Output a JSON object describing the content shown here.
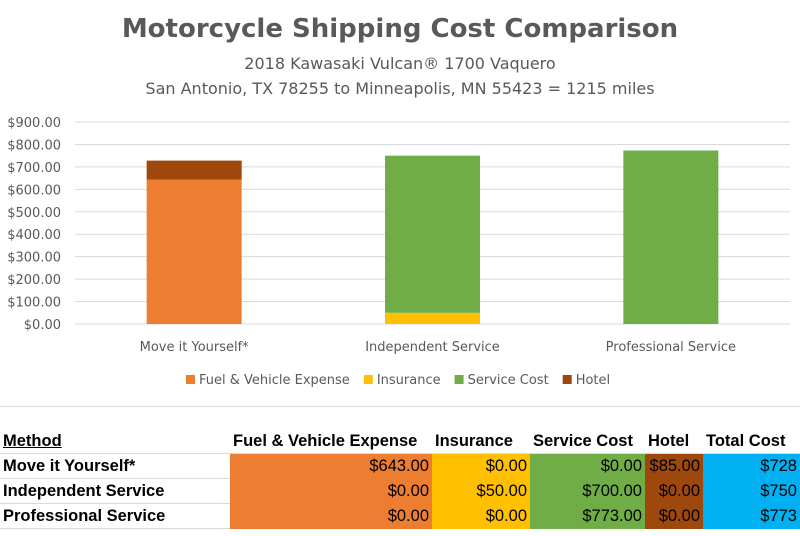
{
  "chart_data": {
    "type": "bar",
    "stacked": true,
    "title": "Motorcycle Shipping Cost Comparison",
    "subtitle_1": "2018 Kawasaki Vulcan® 1700 Vaquero",
    "subtitle_2": "San Antonio, TX 78255 to Minneapolis, MN 55423 = 1215 miles",
    "categories": [
      "Move it Yourself*",
      "Independent Service",
      "Professional Service"
    ],
    "series": [
      {
        "name": "Fuel & Vehicle Expense",
        "values": [
          643,
          0,
          0
        ],
        "color": "#ED7D31"
      },
      {
        "name": "Insurance",
        "values": [
          0,
          50,
          0
        ],
        "color": "#FFC000"
      },
      {
        "name": "Service Cost",
        "values": [
          0,
          700,
          773
        ],
        "color": "#70AD47"
      },
      {
        "name": "Hotel",
        "values": [
          85,
          0,
          0
        ],
        "color": "#9E480E"
      }
    ],
    "yticks": [
      "$0.00",
      "$100.00",
      "$200.00",
      "$300.00",
      "$400.00",
      "$500.00",
      "$600.00",
      "$700.00",
      "$800.00",
      "$900.00"
    ],
    "ylim": [
      0,
      900
    ],
    "grid": true,
    "legend": "bottom"
  },
  "table": {
    "headers": [
      "Method",
      "Fuel & Vehicle Expense",
      "Insurance",
      "Service Cost",
      "Hotel",
      "Total Cost"
    ],
    "rows": [
      [
        "Move it Yourself*",
        "$643.00",
        "$0.00",
        "$0.00",
        "$85.00",
        "$728"
      ],
      [
        "Independent Service",
        "$0.00",
        "$50.00",
        "$700.00",
        "$0.00",
        "$750"
      ],
      [
        "Professional Service",
        "$0.00",
        "$0.00",
        "$773.00",
        "$0.00",
        "$773"
      ]
    ],
    "column_colors": [
      "",
      "#ED7D31",
      "#FFC000",
      "#70AD47",
      "#9E480E",
      "#00B0F0"
    ]
  }
}
